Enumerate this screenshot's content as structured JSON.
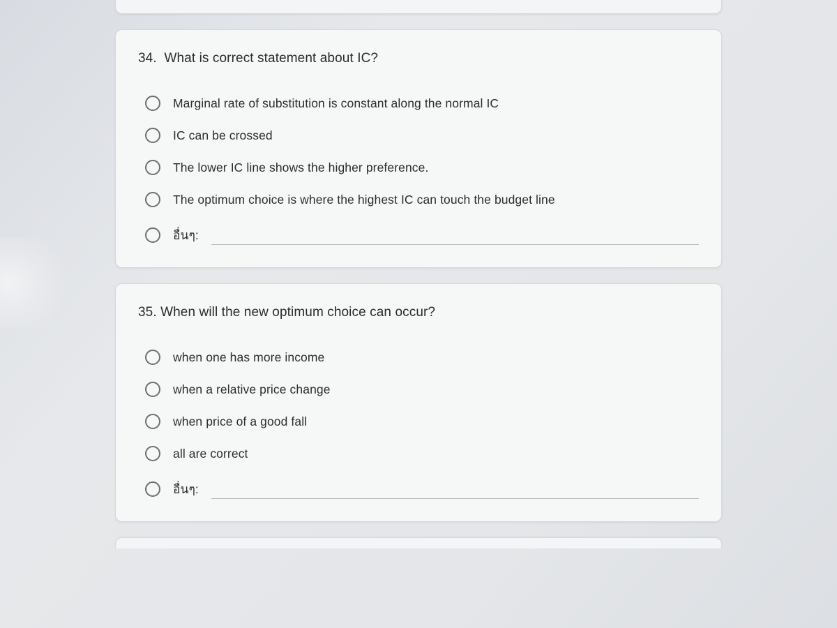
{
  "questions": [
    {
      "number": "34.",
      "text": "What is correct statement about IC?",
      "options": [
        "Marginal rate of substitution is constant along the normal IC",
        "IC can be crossed",
        "The lower IC line shows the higher preference.",
        "The optimum choice is where the highest IC can touch the budget line"
      ],
      "other_label": "อื่นๆ:"
    },
    {
      "number": "35.",
      "text": "When will the new optimum choice can occur?",
      "options": [
        "when one has more income",
        "when a relative price change",
        "when price of a good fall",
        "all are correct"
      ],
      "other_label": "อื่นๆ:"
    }
  ],
  "colors": {
    "card_bg": "#f6f7f7",
    "page_bg": "#e4e6e9",
    "text": "#2c2d2e",
    "radio_border": "#6d6f72",
    "underline": "#b8b9ba"
  }
}
